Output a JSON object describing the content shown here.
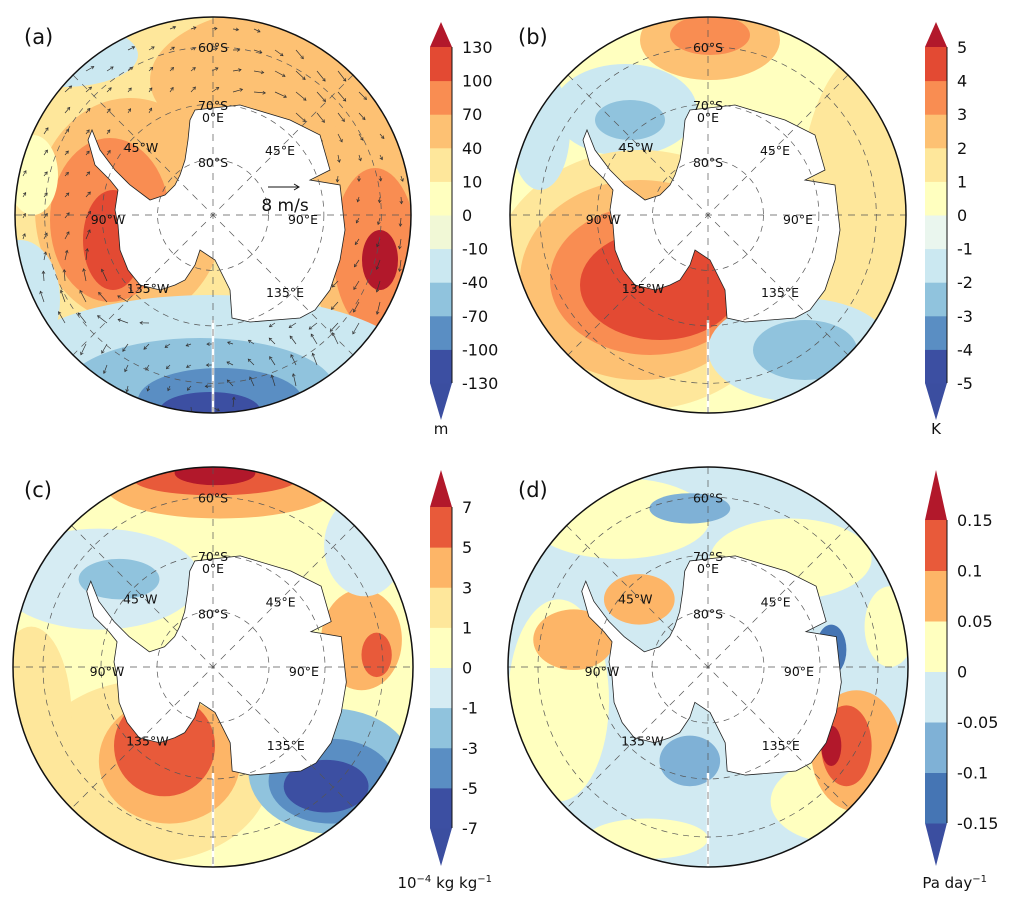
{
  "panels": [
    {
      "label": "(a)",
      "colorbar": {
        "ticks": [
          "130",
          "100",
          "70",
          "40",
          "10",
          "0",
          "-10",
          "-40",
          "-70",
          "-100",
          "-130"
        ],
        "colors": [
          "#3c4fa2",
          "#5a8ec3",
          "#90c3dd",
          "#cbe8f1",
          "#f1f8d6",
          "#ffffbf",
          "#fee79b",
          "#fdc173",
          "#f98d52",
          "#e34a33"
        ],
        "tip_high": "#b2182b",
        "tip_low": "#3b4ea0",
        "unit": {
          "base": "m",
          "sup": "",
          "rest": "",
          "sup2": ""
        }
      },
      "map_labels": {
        "lat60": "60°S",
        "lat70": "70°S",
        "lat80": "80°S",
        "lon0": "0°E",
        "lon45e": "45°E",
        "lon90e": "90°E",
        "lon135e": "135°E",
        "lon45w": "45°W",
        "lon90w": "90°W",
        "lon135w": "135°W"
      },
      "vector_reference": "8 m/s"
    },
    {
      "label": "(b)",
      "colorbar": {
        "ticks": [
          "5",
          "4",
          "3",
          "2",
          "1",
          "0",
          "-1",
          "-2",
          "-3",
          "-4",
          "-5"
        ],
        "colors": [
          "#3c4fa2",
          "#5a8ec3",
          "#90c3dd",
          "#cbe8f1",
          "#eaf6ee",
          "#ffffbf",
          "#fee79b",
          "#fdc173",
          "#f98d52",
          "#e34a33"
        ],
        "tip_high": "#b2182b",
        "tip_low": "#3b4ea0",
        "unit": {
          "base": "K",
          "sup": "",
          "rest": "",
          "sup2": ""
        }
      },
      "map_labels": {
        "lat60": "60°S",
        "lat70": "70°S",
        "lat80": "80°S",
        "lon0": "0°E",
        "lon45e": "45°E",
        "lon90e": "90°E",
        "lon135e": "135°E",
        "lon45w": "45°W",
        "lon90w": "90°W",
        "lon135w": "135°W"
      }
    },
    {
      "label": "(c)",
      "colorbar": {
        "ticks": [
          "7",
          "5",
          "3",
          "1",
          "0",
          "-1",
          "-3",
          "-5",
          "-7"
        ],
        "colors": [
          "#3c4fa2",
          "#5a8ec3",
          "#90c3dd",
          "#d6ecf3",
          "#ffffbf",
          "#fee79b",
          "#fdb567",
          "#e85a3a"
        ],
        "tip_high": "#b2182b",
        "tip_low": "#3b4ea0",
        "unit": {
          "base": "10",
          "sup": "−4",
          "rest": " kg kg",
          "sup2": "−1"
        }
      },
      "map_labels": {
        "lat60": "60°S",
        "lat70": "70°S",
        "lat80": "80°S",
        "lon0": "0°E",
        "lon45e": "45°E",
        "lon90e": "90°E",
        "lon135e": "135°E",
        "lon45w": "45°W",
        "lon90w": "90°W",
        "lon135w": "135°W"
      }
    },
    {
      "label": "(d)",
      "colorbar": {
        "ticks": [
          "0.15",
          "0.1",
          "0.05",
          "0",
          "-0.05",
          "-0.1",
          "-0.15"
        ],
        "colors": [
          "#4575b4",
          "#7fb1d6",
          "#d1eaf2",
          "#ffffbf",
          "#fdb567",
          "#e85a3a"
        ],
        "tip_high": "#b2182b",
        "tip_low": "#3b4ea0",
        "unit": {
          "base": "Pa day",
          "sup": "−1",
          "rest": "",
          "sup2": ""
        }
      },
      "map_labels": {
        "lat60": "60°S",
        "lat70": "70°S",
        "lat80": "80°S",
        "lon0": "0°E",
        "lon45e": "45°E",
        "lon90e": "90°E",
        "lon135e": "135°E",
        "lon45w": "45°W",
        "lon90w": "90°W",
        "lon135w": "135°W"
      }
    }
  ]
}
